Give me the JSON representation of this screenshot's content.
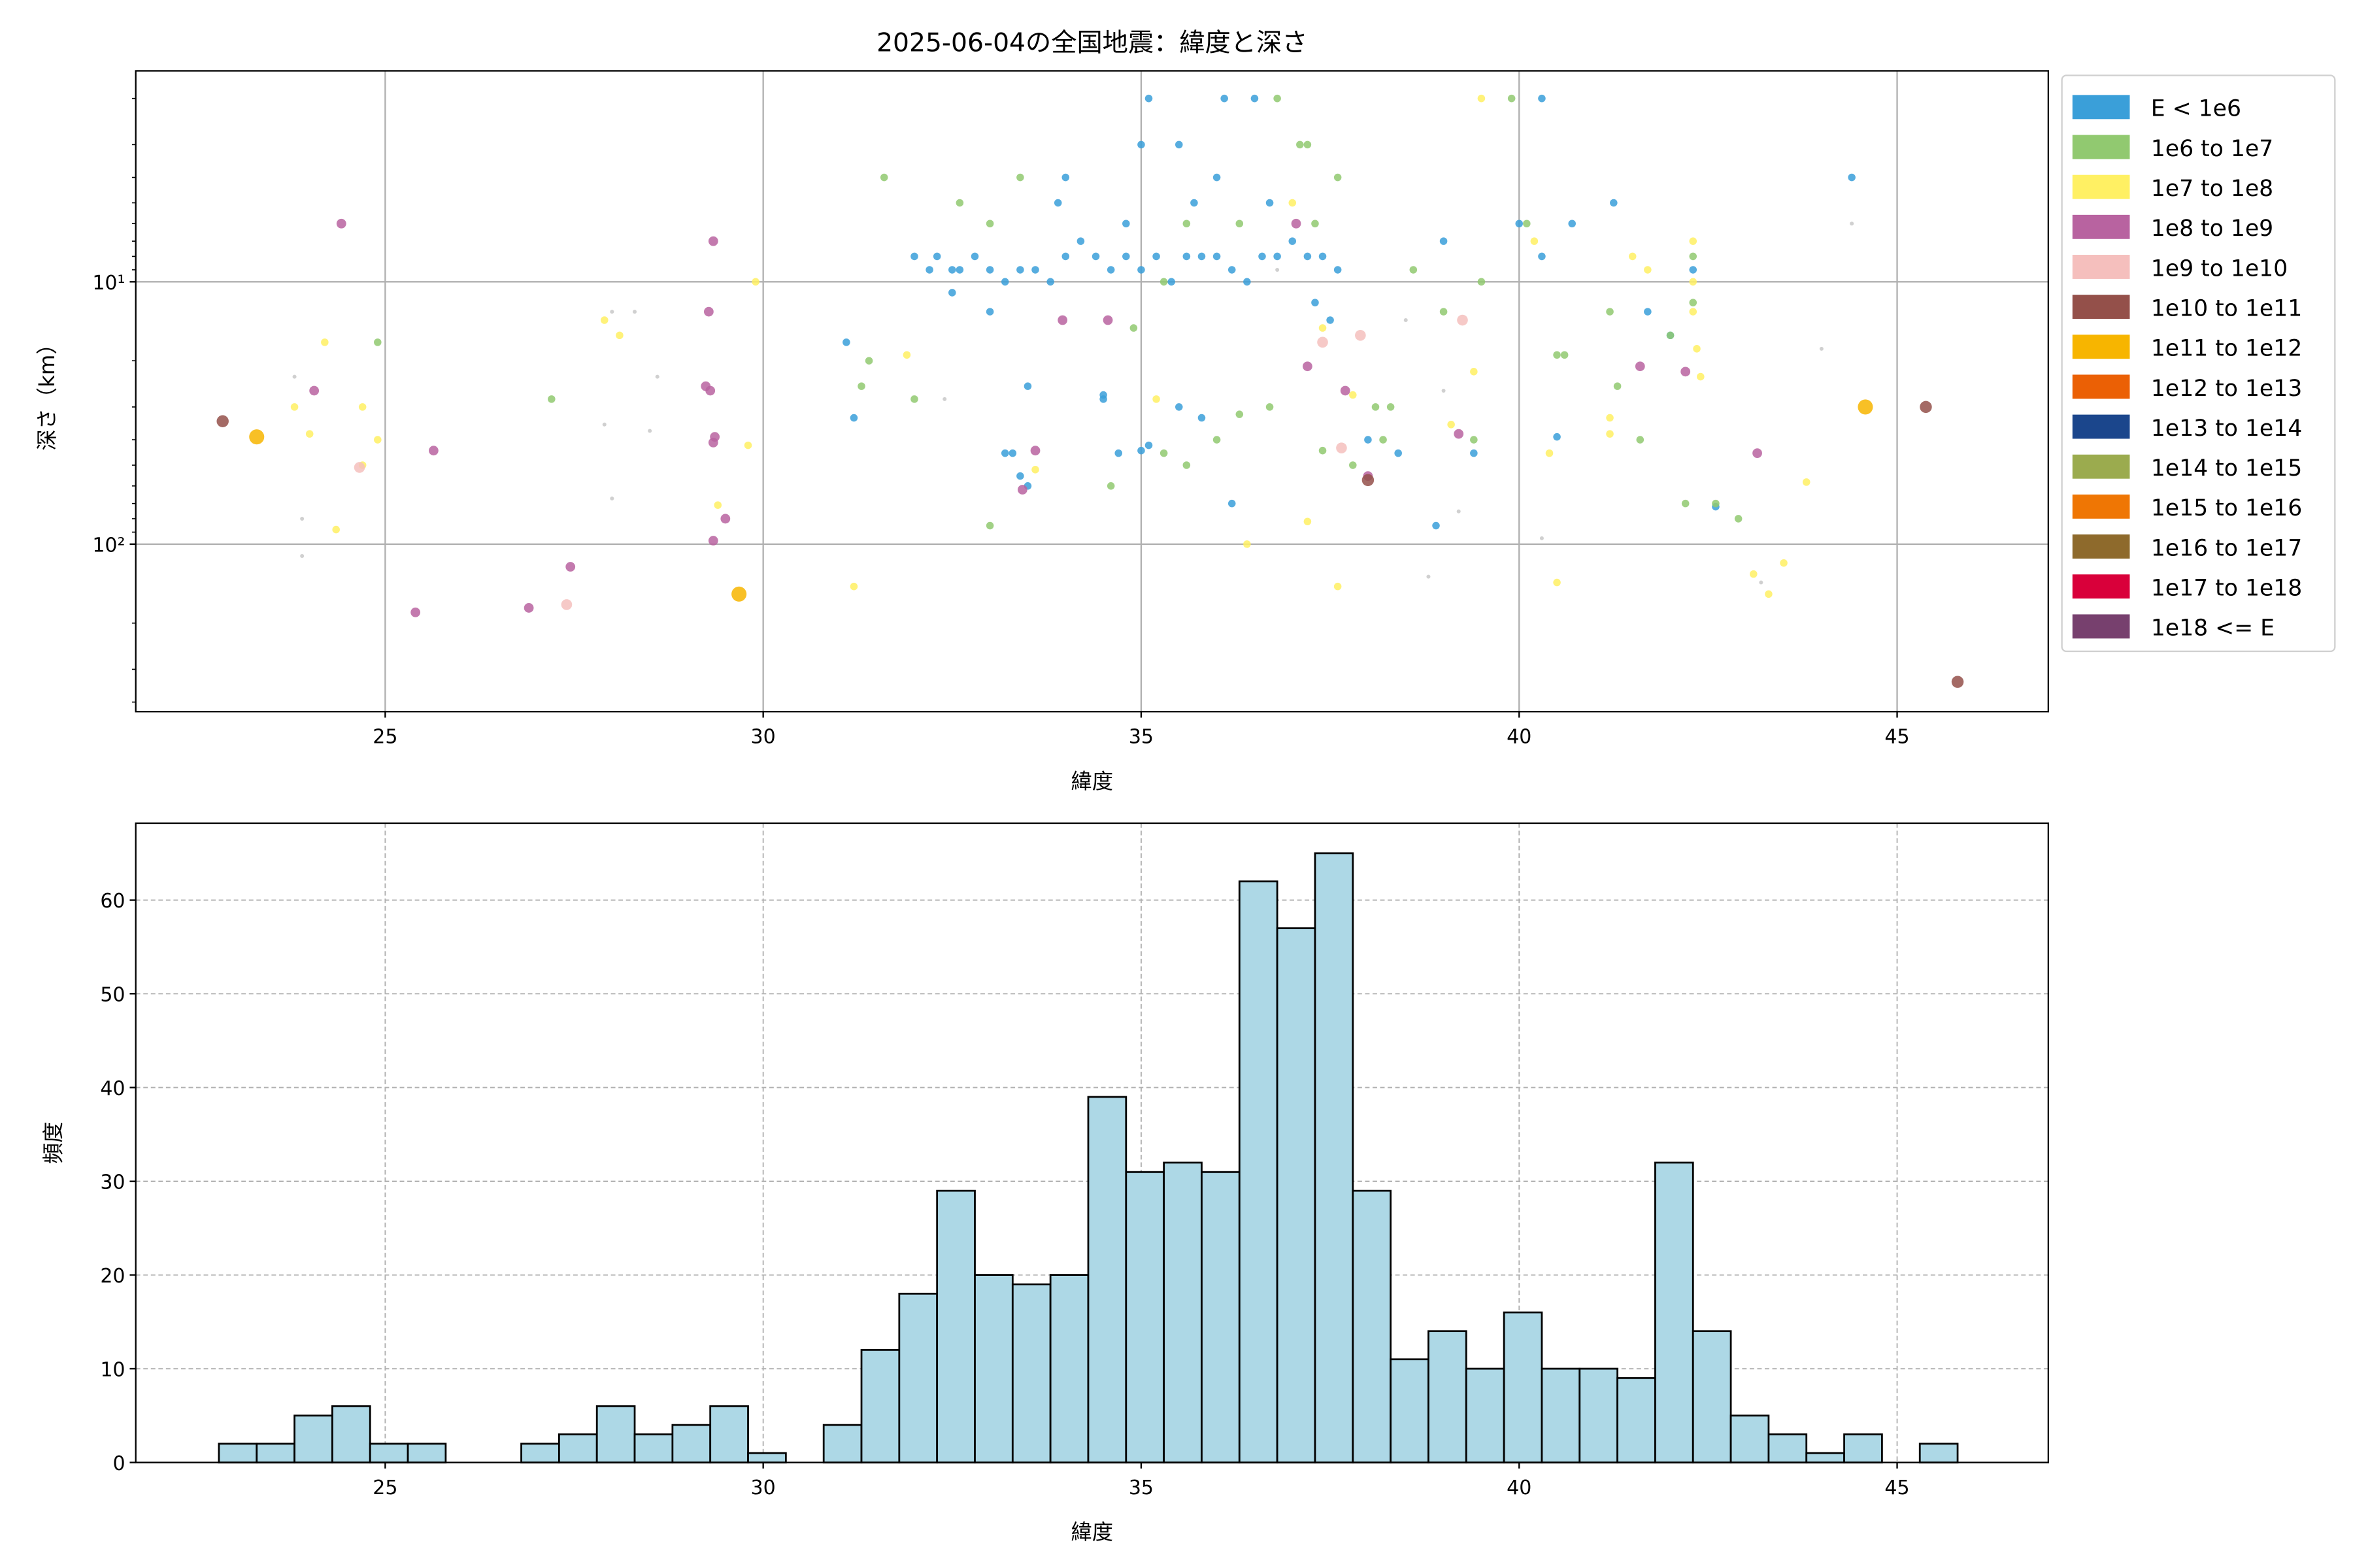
{
  "chart_data": [
    {
      "type": "scatter",
      "title": "2025-06-04の全国地震：緯度と深さ",
      "xlabel": "緯度",
      "ylabel": "深さ（km）",
      "xlim": [
        21.7,
        47.0
      ],
      "ylim": [
        1.57,
        435
      ],
      "yscale": "log",
      "yinverted": true,
      "grid": true,
      "xticks": [
        25,
        30,
        35,
        40,
        45
      ],
      "yticks": [
        {
          "value": 10,
          "label": "10¹"
        },
        {
          "value": 100,
          "label": "10²"
        }
      ],
      "legend_position": "outside-right",
      "legend": [
        {
          "label": "E < 1e6",
          "color": "#3a9fd9"
        },
        {
          "label": "1e6 to 1e7",
          "color": "#91c970"
        },
        {
          "label": "1e7 to 1e8",
          "color": "#fff063"
        },
        {
          "label": "1e8 to 1e9",
          "color": "#b863a0"
        },
        {
          "label": "1e9 to 1e10",
          "color": "#f5bfbd"
        },
        {
          "label": "1e10 to 1e11",
          "color": "#94504a"
        },
        {
          "label": "1e11 to 1e12",
          "color": "#f7b500"
        },
        {
          "label": "1e12 to 1e13",
          "color": "#eb6005"
        },
        {
          "label": "1e13 to 1e14",
          "color": "#1b468c"
        },
        {
          "label": "1e14 to 1e15",
          "color": "#9bab4e"
        },
        {
          "label": "1e15 to 1e16",
          "color": "#ef7604"
        },
        {
          "label": "1e16 to 1e17",
          "color": "#8e6a2c"
        },
        {
          "label": "1e17 to 1e18",
          "color": "#d9003a"
        },
        {
          "label": "1e18 <= E",
          "color": "#77406e"
        }
      ],
      "unclassified_color": "#c8c8c8",
      "points_format": [
        "latitude",
        "depth_km",
        "energy_class_index (-1 = unclassified)"
      ],
      "points": [
        [
          32.0,
          8,
          0
        ],
        [
          32.2,
          9,
          0
        ],
        [
          32.3,
          8,
          0
        ],
        [
          32.5,
          9,
          0
        ],
        [
          32.6,
          9,
          0
        ],
        [
          32.8,
          8,
          0
        ],
        [
          33.0,
          9,
          0
        ],
        [
          33.2,
          10,
          0
        ],
        [
          33.4,
          9,
          0
        ],
        [
          33.6,
          9,
          0
        ],
        [
          33.8,
          10,
          0
        ],
        [
          34.0,
          8,
          0
        ],
        [
          34.2,
          7,
          0
        ],
        [
          34.4,
          8,
          0
        ],
        [
          34.6,
          9,
          0
        ],
        [
          34.8,
          8,
          0
        ],
        [
          35.0,
          9,
          0
        ],
        [
          35.2,
          8,
          0
        ],
        [
          35.4,
          10,
          0
        ],
        [
          35.6,
          8,
          0
        ],
        [
          35.8,
          8,
          0
        ],
        [
          36.0,
          8,
          0
        ],
        [
          36.2,
          9,
          0
        ],
        [
          36.4,
          10,
          0
        ],
        [
          36.6,
          8,
          0
        ],
        [
          36.8,
          8,
          0
        ],
        [
          37.0,
          7,
          0
        ],
        [
          37.2,
          8,
          0
        ],
        [
          37.4,
          8,
          0
        ],
        [
          37.6,
          9,
          0
        ],
        [
          35.1,
          2,
          0
        ],
        [
          36.1,
          2,
          0
        ],
        [
          36.5,
          2,
          0
        ],
        [
          40.3,
          2,
          0
        ],
        [
          35.0,
          3,
          0
        ],
        [
          35.5,
          3,
          0
        ],
        [
          36.0,
          4,
          0
        ],
        [
          34.0,
          4,
          0
        ],
        [
          33.9,
          5,
          0
        ],
        [
          44.4,
          4,
          0
        ],
        [
          41.25,
          5,
          0
        ],
        [
          32.5,
          11,
          0
        ],
        [
          33.0,
          13,
          0
        ],
        [
          33.5,
          25,
          0
        ],
        [
          33.3,
          45,
          0
        ],
        [
          33.2,
          45,
          0
        ],
        [
          33.4,
          55,
          0
        ],
        [
          33.5,
          60,
          0
        ],
        [
          34.5,
          27,
          0
        ],
        [
          34.5,
          28,
          0
        ],
        [
          34.7,
          45,
          0
        ],
        [
          35.1,
          42,
          0
        ],
        [
          35.0,
          44,
          0
        ],
        [
          35.5,
          30,
          0
        ],
        [
          35.8,
          33,
          0
        ],
        [
          36.2,
          70,
          0
        ],
        [
          38.4,
          45,
          0
        ],
        [
          38.0,
          40,
          0
        ],
        [
          38.9,
          85,
          0
        ],
        [
          39.4,
          45,
          0
        ],
        [
          40.5,
          39,
          0
        ],
        [
          42.0,
          16,
          0
        ],
        [
          42.6,
          72,
          0
        ],
        [
          31.1,
          17,
          0
        ],
        [
          31.2,
          33,
          0
        ],
        [
          34.8,
          6,
          0
        ],
        [
          35.7,
          5,
          0
        ],
        [
          36.7,
          5,
          0
        ],
        [
          37.3,
          12,
          0
        ],
        [
          37.5,
          14,
          0
        ],
        [
          39.0,
          7,
          0
        ],
        [
          40.0,
          6,
          0
        ],
        [
          40.3,
          8,
          0
        ],
        [
          40.7,
          6,
          0
        ],
        [
          41.7,
          13,
          0
        ],
        [
          42.3,
          9,
          0
        ],
        [
          31.3,
          25,
          1
        ],
        [
          31.6,
          4,
          1
        ],
        [
          32.6,
          5,
          1
        ],
        [
          33.0,
          6,
          1
        ],
        [
          33.4,
          4,
          1
        ],
        [
          35.6,
          6,
          1
        ],
        [
          36.3,
          6,
          1
        ],
        [
          37.1,
          3,
          1
        ],
        [
          37.6,
          4,
          1
        ],
        [
          38.1,
          30,
          1
        ],
        [
          38.6,
          9,
          1
        ],
        [
          39.0,
          13,
          1
        ],
        [
          39.5,
          10,
          1
        ],
        [
          39.9,
          2,
          1
        ],
        [
          40.1,
          6,
          1
        ],
        [
          40.5,
          19,
          1
        ],
        [
          41.2,
          13,
          1
        ],
        [
          41.3,
          25,
          1
        ],
        [
          41.6,
          40,
          1
        ],
        [
          42.0,
          16,
          1
        ],
        [
          42.3,
          8,
          1
        ],
        [
          42.3,
          12,
          1
        ],
        [
          42.2,
          70,
          1
        ],
        [
          42.6,
          70,
          1
        ],
        [
          42.9,
          80,
          1
        ],
        [
          40.6,
          19,
          1
        ],
        [
          39.4,
          40,
          1
        ],
        [
          37.2,
          3,
          1
        ],
        [
          37.3,
          6,
          1
        ],
        [
          36.8,
          2,
          1
        ],
        [
          34.6,
          60,
          1
        ],
        [
          35.3,
          45,
          1
        ],
        [
          32.0,
          28,
          1
        ],
        [
          33.0,
          85,
          1
        ],
        [
          37.8,
          50,
          1
        ],
        [
          38.2,
          40,
          1
        ],
        [
          38.3,
          30,
          1
        ],
        [
          36.7,
          30,
          1
        ],
        [
          37.4,
          44,
          1
        ],
        [
          36.3,
          32,
          1
        ],
        [
          36.0,
          40,
          1
        ],
        [
          35.6,
          50,
          1
        ],
        [
          34.9,
          15,
          1
        ],
        [
          35.3,
          10,
          1
        ],
        [
          31.4,
          20,
          1
        ],
        [
          24.9,
          17,
          1
        ],
        [
          27.2,
          28,
          1
        ],
        [
          24.2,
          17,
          2
        ],
        [
          23.8,
          30,
          2
        ],
        [
          24.0,
          38,
          2
        ],
        [
          24.7,
          30,
          2
        ],
        [
          24.9,
          40,
          2
        ],
        [
          24.7,
          50,
          2
        ],
        [
          24.35,
          88,
          2
        ],
        [
          27.9,
          14,
          2
        ],
        [
          28.1,
          16,
          2
        ],
        [
          29.8,
          42,
          2
        ],
        [
          29.9,
          10,
          2
        ],
        [
          29.4,
          71,
          2
        ],
        [
          31.2,
          145,
          2
        ],
        [
          31.9,
          19,
          2
        ],
        [
          33.6,
          52,
          2
        ],
        [
          37.0,
          5,
          2
        ],
        [
          37.4,
          15,
          2
        ],
        [
          37.6,
          145,
          2
        ],
        [
          37.2,
          82,
          2
        ],
        [
          39.5,
          2,
          2
        ],
        [
          39.1,
          35,
          2
        ],
        [
          39.4,
          22,
          2
        ],
        [
          40.2,
          7,
          2
        ],
        [
          40.4,
          45,
          2
        ],
        [
          40.5,
          140,
          2
        ],
        [
          41.2,
          33,
          2
        ],
        [
          41.2,
          38,
          2
        ],
        [
          41.5,
          8,
          2
        ],
        [
          41.7,
          9,
          2
        ],
        [
          42.3,
          7,
          2
        ],
        [
          42.3,
          10,
          2
        ],
        [
          42.3,
          13,
          2
        ],
        [
          42.35,
          18,
          2
        ],
        [
          42.4,
          23,
          2
        ],
        [
          43.1,
          130,
          2
        ],
        [
          43.3,
          155,
          2
        ],
        [
          43.5,
          118,
          2
        ],
        [
          43.8,
          58,
          2
        ],
        [
          36.4,
          100,
          2
        ],
        [
          35.2,
          28,
          2
        ],
        [
          37.8,
          27,
          2
        ],
        [
          24.42,
          6,
          3
        ],
        [
          24.06,
          26,
          3
        ],
        [
          25.64,
          44,
          3
        ],
        [
          25.4,
          182,
          3
        ],
        [
          26.9,
          175,
          3
        ],
        [
          27.45,
          122,
          3
        ],
        [
          29.34,
          7,
          3
        ],
        [
          29.28,
          13,
          3
        ],
        [
          29.24,
          25,
          3
        ],
        [
          29.3,
          26,
          3
        ],
        [
          29.36,
          39,
          3
        ],
        [
          29.34,
          41,
          3
        ],
        [
          29.5,
          80,
          3
        ],
        [
          29.34,
          97,
          3
        ],
        [
          33.96,
          14,
          3
        ],
        [
          34.56,
          14,
          3
        ],
        [
          33.6,
          44,
          3
        ],
        [
          37.05,
          6,
          3
        ],
        [
          37.2,
          21,
          3
        ],
        [
          37.7,
          26,
          3
        ],
        [
          38.0,
          55,
          3
        ],
        [
          42.2,
          22,
          3
        ],
        [
          43.15,
          45,
          3
        ],
        [
          41.6,
          21,
          3
        ],
        [
          39.2,
          38,
          3
        ],
        [
          33.43,
          62,
          3
        ],
        [
          24.66,
          51,
          4
        ],
        [
          27.4,
          170,
          4
        ],
        [
          39.25,
          14,
          4
        ],
        [
          37.4,
          17,
          4
        ],
        [
          37.9,
          16,
          4
        ],
        [
          37.65,
          43,
          4
        ],
        [
          22.85,
          34,
          5
        ],
        [
          45.38,
          30,
          5
        ],
        [
          45.8,
          335,
          5
        ],
        [
          38.0,
          57,
          5
        ],
        [
          23.3,
          39,
          6
        ],
        [
          29.68,
          155,
          6
        ],
        [
          44.58,
          30,
          6
        ],
        [
          23.8,
          23,
          -1
        ],
        [
          23.9,
          80,
          -1
        ],
        [
          23.9,
          111,
          -1
        ],
        [
          28.0,
          13,
          -1
        ],
        [
          28.3,
          13,
          -1
        ],
        [
          28.6,
          23,
          -1
        ],
        [
          28.5,
          37,
          -1
        ],
        [
          27.9,
          35,
          -1
        ],
        [
          28.0,
          67,
          -1
        ],
        [
          32.4,
          28,
          -1
        ],
        [
          36.8,
          9,
          -1
        ],
        [
          38.5,
          14,
          -1
        ],
        [
          39.0,
          26,
          -1
        ],
        [
          38.8,
          133,
          -1
        ],
        [
          39.2,
          75,
          -1
        ],
        [
          40.3,
          95,
          -1
        ],
        [
          43.2,
          140,
          -1
        ],
        [
          44.0,
          18,
          -1
        ],
        [
          44.4,
          6,
          -1
        ]
      ]
    },
    {
      "type": "bar",
      "subtype": "histogram",
      "title": "",
      "xlabel": "緯度",
      "ylabel": "頻度",
      "xlim": [
        21.7,
        47.0
      ],
      "ylim": [
        0,
        68.2
      ],
      "grid": true,
      "xticks": [
        25,
        30,
        35,
        40,
        45
      ],
      "yticks": [
        0,
        10,
        20,
        30,
        40,
        50,
        60
      ],
      "bin_start": 22.8,
      "bin_width": 0.5,
      "bar_color": "#add8e6",
      "edge_color": "#000000",
      "values": [
        2,
        2,
        5,
        6,
        2,
        2,
        0,
        0,
        2,
        3,
        6,
        3,
        4,
        6,
        1,
        0,
        4,
        12,
        18,
        29,
        20,
        19,
        20,
        39,
        31,
        32,
        31,
        62,
        57,
        65,
        29,
        11,
        14,
        10,
        16,
        10,
        10,
        9,
        32,
        14,
        5,
        3,
        1,
        3,
        0,
        2
      ]
    }
  ]
}
